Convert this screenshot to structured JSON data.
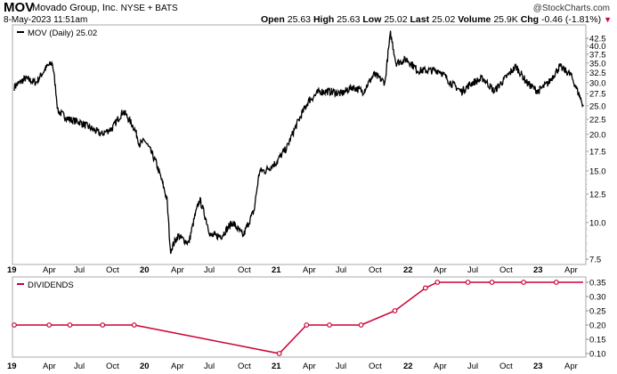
{
  "header": {
    "symbol": "MOV",
    "name": "Movado Group, Inc.",
    "exchange": "NYSE + BATS",
    "copyright": "@StockCharts.com",
    "date": "8-May-2023 11:51am",
    "open_label": "Open",
    "open": "25.63",
    "high_label": "High",
    "high": "25.63",
    "low_label": "Low",
    "low": "25.02",
    "last_label": "Last",
    "last": "25.02",
    "volume_label": "Volume",
    "volume": "25.9K",
    "chg_label": "Chg",
    "chg": "-0.46 (-1.81%)",
    "down_color": "#cc0033"
  },
  "chart_data": [
    {
      "type": "line",
      "title": "MOV (Daily) 25.02",
      "legend": "top-left",
      "yscale": "log",
      "ylim": [
        7.5,
        42.5
      ],
      "yticks": [
        "42.5",
        "40.0",
        "37.5",
        "35.0",
        "32.5",
        "30.0",
        "27.5",
        "25.0",
        "22.5",
        "20.0",
        "17.5",
        "15.0",
        "12.5",
        "10.0",
        "7.5"
      ],
      "xticks": [
        "19",
        "Apr",
        "Jul",
        "Oct",
        "20",
        "Apr",
        "Jul",
        "Oct",
        "21",
        "Apr",
        "Jul",
        "Oct",
        "22",
        "Apr",
        "Jul",
        "Oct",
        "23",
        "Apr"
      ],
      "x_unit": "months since Jan 2019",
      "x": [
        0,
        1,
        2,
        3,
        3.5,
        4,
        5,
        6,
        7,
        8,
        9,
        10,
        11,
        11.5,
        12,
        13,
        14,
        14.3,
        15,
        16,
        17,
        18,
        19,
        20,
        21,
        22,
        22.5,
        23,
        24,
        25,
        26,
        27,
        28,
        29,
        30,
        31,
        32,
        33,
        34,
        34.5,
        35,
        36,
        37,
        38,
        39,
        40,
        41,
        42,
        43,
        44,
        45,
        46,
        47,
        48,
        49,
        50,
        50.5,
        51,
        52,
        52.2
      ],
      "values": [
        29,
        31,
        30,
        34,
        35,
        24,
        22.5,
        22,
        21,
        20,
        21,
        24,
        21,
        18.5,
        19,
        16,
        12,
        8,
        9,
        8.5,
        12,
        9,
        9,
        10,
        9,
        11,
        15,
        15,
        16,
        18,
        22,
        26,
        28,
        28,
        27.5,
        29,
        28,
        32,
        30,
        44,
        35,
        36,
        33,
        33,
        33,
        30,
        28,
        30,
        31,
        28,
        31,
        34,
        30,
        28,
        30,
        34,
        33,
        32,
        26,
        25
      ]
    },
    {
      "type": "line",
      "title": "DIVIDENDS",
      "legend": "top-left",
      "ylim": [
        0.1,
        0.35
      ],
      "yticks": [
        "0.35",
        "0.30",
        "0.25",
        "0.20",
        "0.15",
        "0.10"
      ],
      "xticks": [
        "19",
        "Apr",
        "Jul",
        "Oct",
        "20",
        "Apr",
        "Jul",
        "Oct",
        "21",
        "Apr",
        "Jul",
        "Oct",
        "22",
        "Apr",
        "Jul",
        "Oct",
        "23",
        "Apr"
      ],
      "x": [
        0,
        3.2,
        5.1,
        8.1,
        11,
        24.3,
        26.8,
        28.9,
        31.8,
        34.9,
        37.7,
        38.8,
        41.6,
        43.8,
        46.7,
        49.7
      ],
      "values": [
        0.2,
        0.2,
        0.2,
        0.2,
        0.2,
        0.1,
        0.2,
        0.2,
        0.2,
        0.25,
        0.33,
        0.35,
        0.35,
        0.35,
        0.35,
        0.35
      ],
      "color": "#cc0033"
    }
  ]
}
